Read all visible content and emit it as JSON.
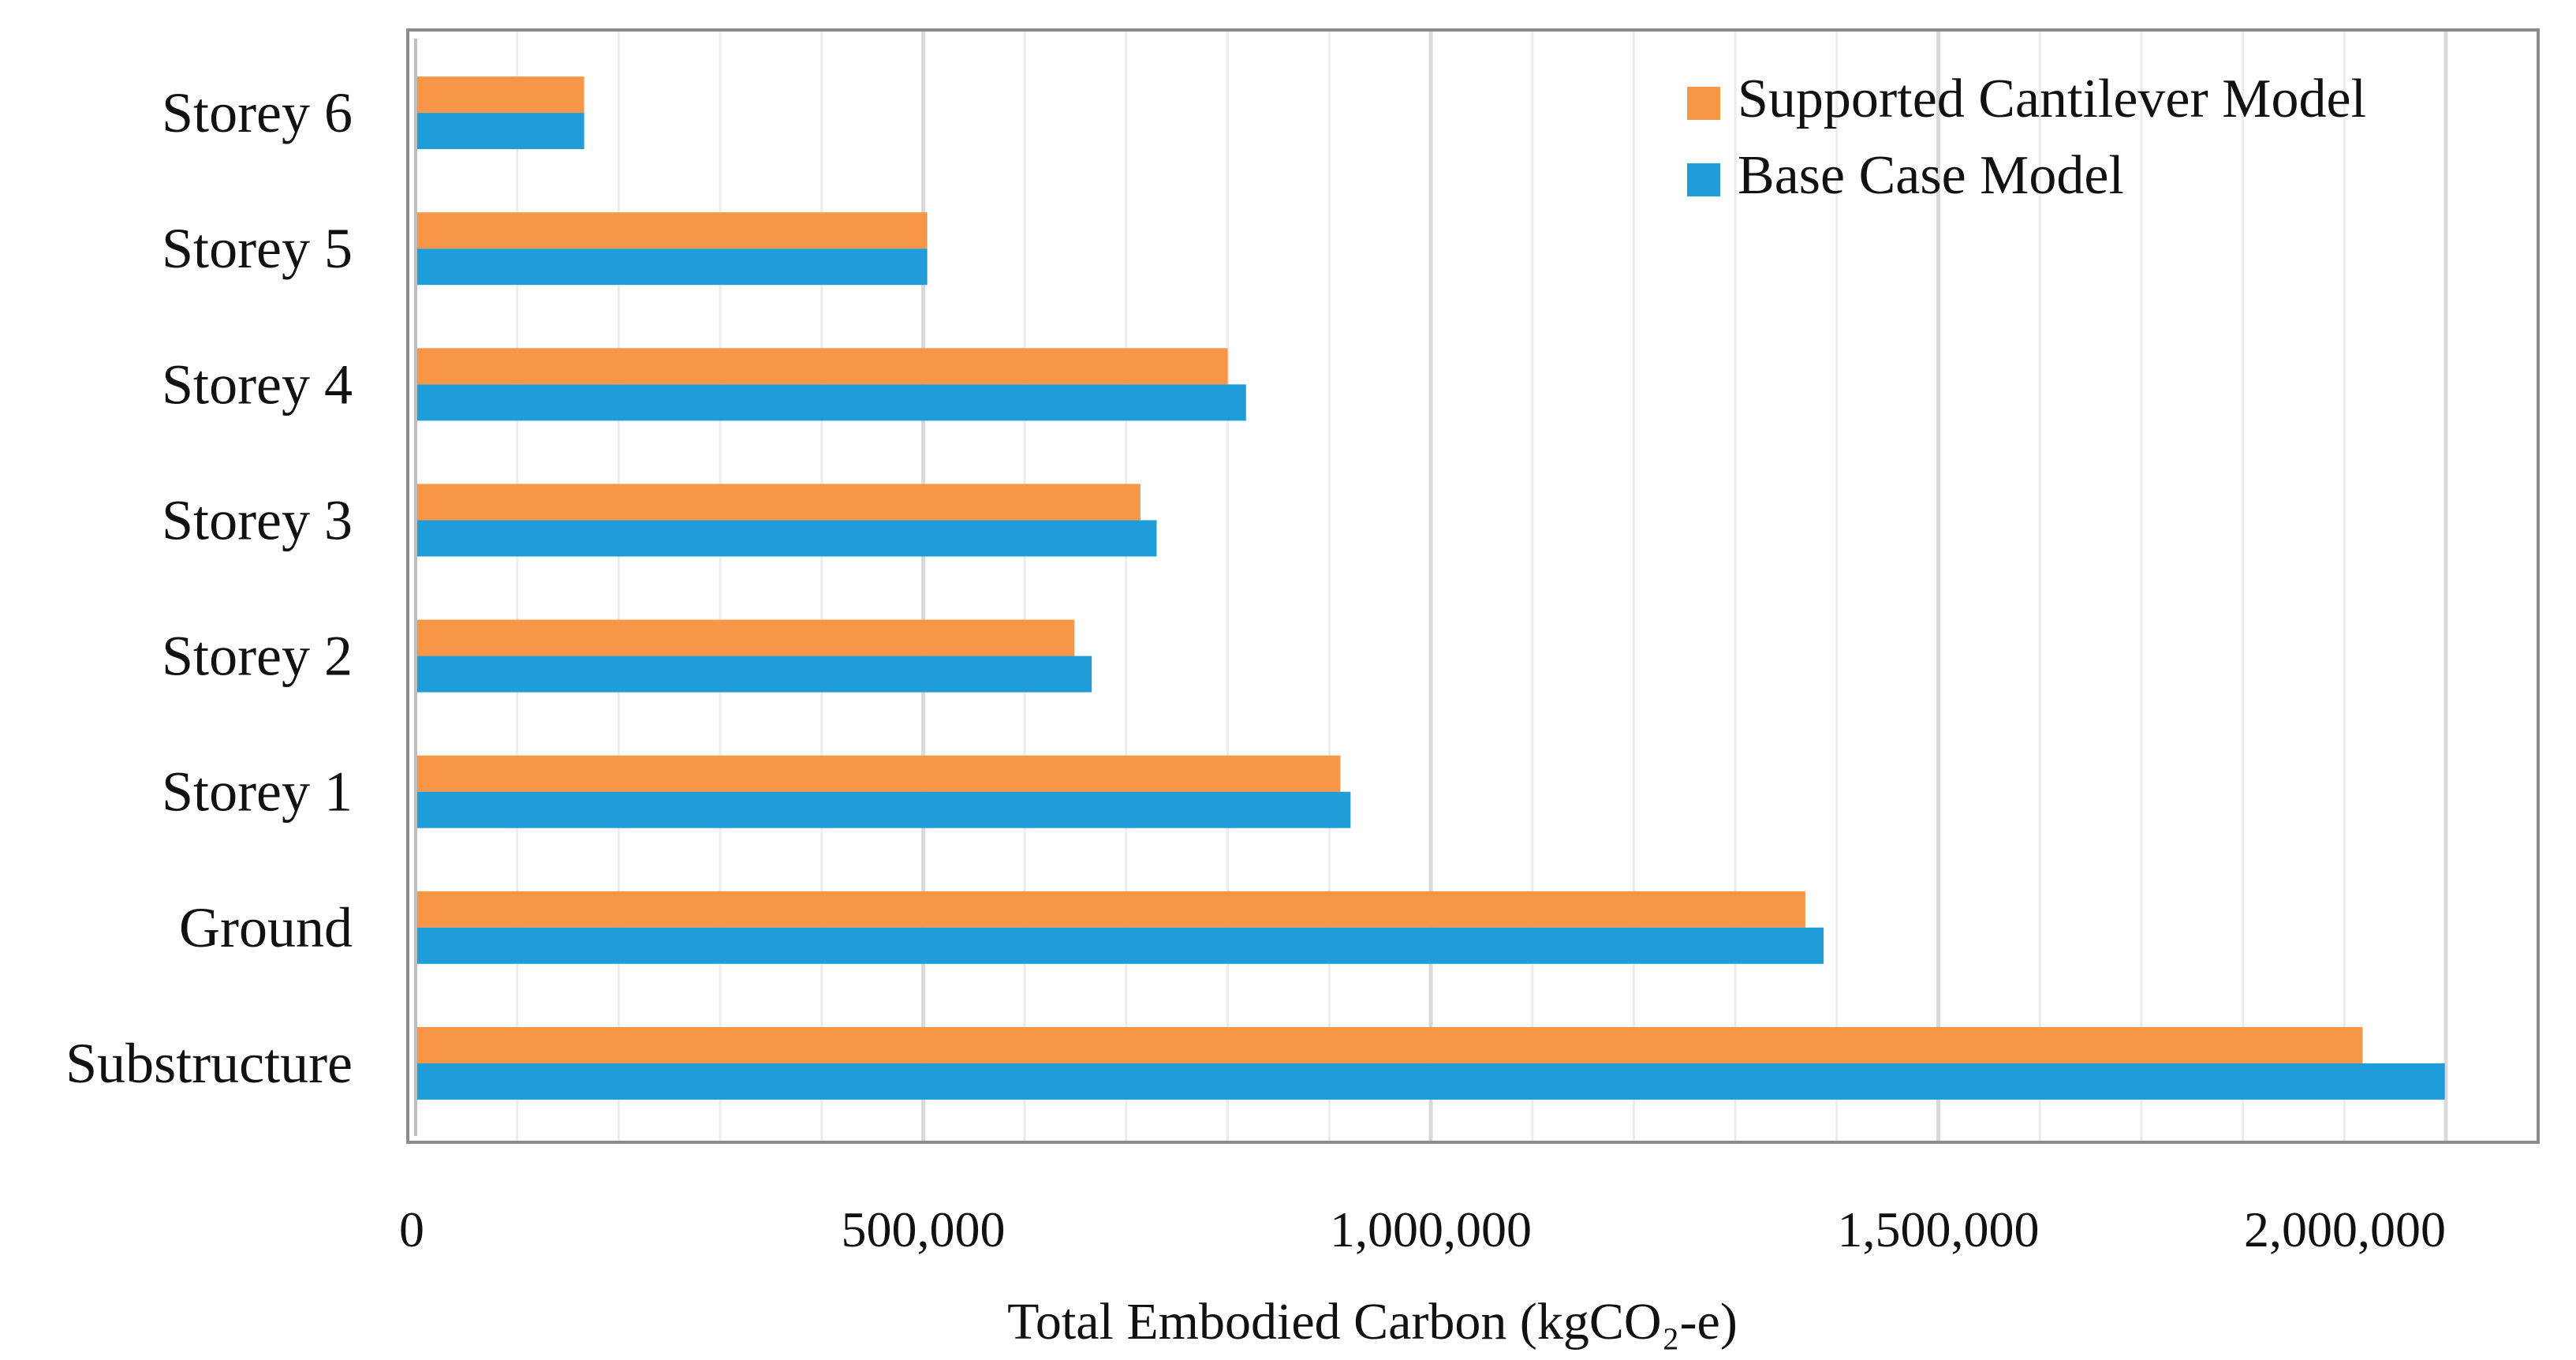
{
  "chart_data": {
    "type": "bar",
    "orientation": "horizontal",
    "title": "",
    "xlabel": "Total Embodied Carbon (kgCO₂-e)",
    "ylabel": "",
    "xlim": [
      0,
      2000000
    ],
    "x_ticks": [
      0,
      500000,
      1000000,
      1500000,
      2000000
    ],
    "x_tick_labels": [
      "0",
      "500,000",
      "1,000,000",
      "1,500,000",
      "2,000,000"
    ],
    "minor_grid_step": 100000,
    "grid": true,
    "legend_position": "top-right",
    "categories": [
      "Storey 6",
      "Storey 5",
      "Storey 4",
      "Storey 3",
      "Storey 2",
      "Storey 1",
      "Ground",
      "Substructure"
    ],
    "series": [
      {
        "name": "Supported Cantilever Model",
        "color": "#F79646",
        "values": [
          166000,
          504000,
          800000,
          714000,
          649000,
          911000,
          1369000,
          1918000
        ]
      },
      {
        "name": "Base Case Model",
        "color": "#1F9DD9",
        "values": [
          166000,
          504000,
          818000,
          730000,
          666000,
          921000,
          1387000,
          1999000
        ]
      }
    ]
  }
}
